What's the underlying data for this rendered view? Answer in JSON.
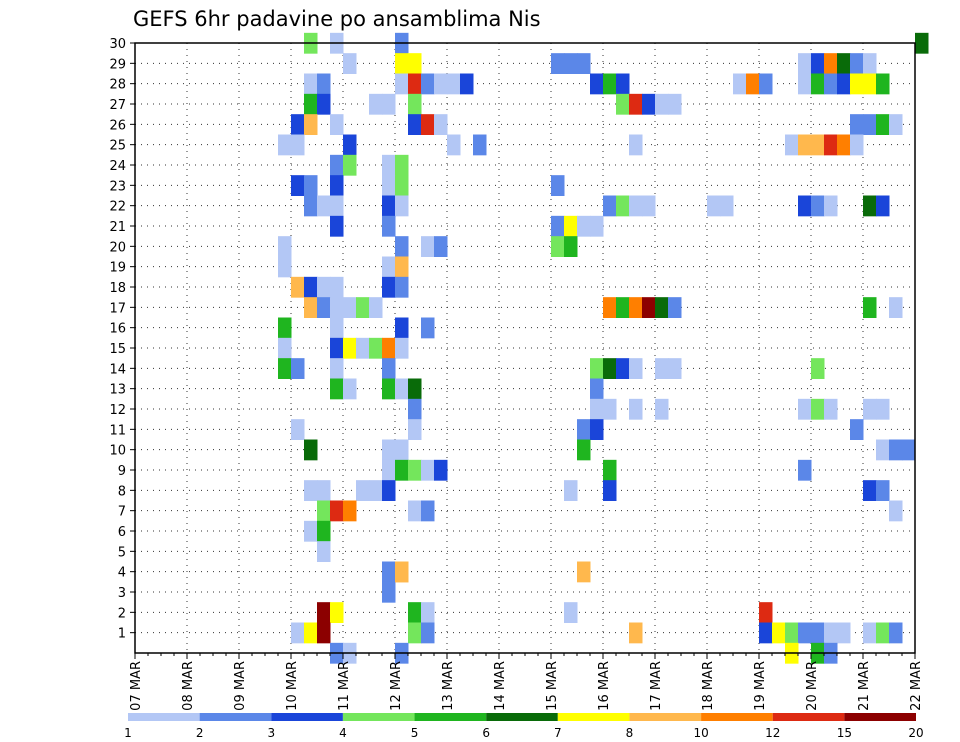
{
  "chart_data": {
    "type": "heatmap",
    "title": "GEFS 6hr padavine po ansamblima Nis",
    "y_ticks": [
      1,
      2,
      3,
      4,
      5,
      6,
      7,
      8,
      9,
      10,
      11,
      12,
      13,
      14,
      15,
      16,
      17,
      18,
      19,
      20,
      21,
      22,
      23,
      24,
      25,
      26,
      27,
      28,
      29,
      30
    ],
    "ylim": [
      0,
      30
    ],
    "x_ticks": [
      {
        "label": "07 MAR",
        "day": 0
      },
      {
        "label": "08 MAR",
        "day": 1
      },
      {
        "label": "09 MAR",
        "day": 2
      },
      {
        "label": "10 MAR",
        "day": 3
      },
      {
        "label": "11 MAR",
        "day": 4
      },
      {
        "label": "12 MAR",
        "day": 5
      },
      {
        "label": "13 MAR",
        "day": 6
      },
      {
        "label": "14 MAR",
        "day": 7
      },
      {
        "label": "15 MAR",
        "day": 8
      },
      {
        "label": "16 MAR",
        "day": 9
      },
      {
        "label": "17 MAR",
        "day": 10
      },
      {
        "label": "18 MAR",
        "day": 11
      },
      {
        "label": "19 MAR",
        "day": 12
      },
      {
        "label": "20 MAR",
        "day": 13
      },
      {
        "label": "21 MAR",
        "day": 14
      },
      {
        "label": "22 MAR",
        "day": 15
      }
    ],
    "grid": true,
    "colorbar": {
      "labels": [
        "1",
        "2",
        "3",
        "4",
        "5",
        "6",
        "7",
        "8",
        "10",
        "12",
        "15",
        "20"
      ],
      "colors": [
        "#b3c7f5",
        "#5b87e8",
        "#1a45d9",
        "#74e65c",
        "#1fb51f",
        "#096b09",
        "#ffff00",
        "#ffb84d",
        "#ff7f00",
        "#dd2a12",
        "#8c0000"
      ]
    },
    "cells": [
      [
        30,
        3.25,
        4
      ],
      [
        30,
        3.75,
        1
      ],
      [
        30,
        5.0,
        2
      ],
      [
        30,
        15.0,
        6
      ],
      [
        29,
        4.0,
        1
      ],
      [
        29,
        5.0,
        7
      ],
      [
        29,
        5.25,
        7
      ],
      [
        29,
        8.0,
        2
      ],
      [
        29,
        8.25,
        2
      ],
      [
        29,
        8.5,
        2
      ],
      [
        29,
        12.75,
        1
      ],
      [
        29,
        13.0,
        3
      ],
      [
        29,
        13.25,
        9
      ],
      [
        29,
        13.5,
        6
      ],
      [
        29,
        13.75,
        2
      ],
      [
        29,
        14.0,
        1
      ],
      [
        28,
        3.25,
        1
      ],
      [
        28,
        3.5,
        2
      ],
      [
        28,
        5.0,
        1
      ],
      [
        28,
        5.25,
        10
      ],
      [
        28,
        5.5,
        2
      ],
      [
        28,
        5.75,
        1
      ],
      [
        28,
        6.0,
        1
      ],
      [
        28,
        6.25,
        3
      ],
      [
        28,
        8.75,
        3
      ],
      [
        28,
        9.0,
        5
      ],
      [
        28,
        9.25,
        3
      ],
      [
        28,
        11.5,
        1
      ],
      [
        28,
        11.75,
        9
      ],
      [
        28,
        12.0,
        2
      ],
      [
        28,
        12.75,
        1
      ],
      [
        28,
        13.0,
        5
      ],
      [
        28,
        13.25,
        2
      ],
      [
        28,
        13.5,
        3
      ],
      [
        28,
        13.75,
        7
      ],
      [
        28,
        14.0,
        7
      ],
      [
        28,
        14.25,
        5
      ],
      [
        27,
        3.25,
        5
      ],
      [
        27,
        3.5,
        3
      ],
      [
        27,
        4.5,
        1
      ],
      [
        27,
        4.75,
        1
      ],
      [
        27,
        5.25,
        4
      ],
      [
        27,
        9.25,
        4
      ],
      [
        27,
        9.5,
        10
      ],
      [
        27,
        9.75,
        3
      ],
      [
        27,
        10.0,
        1
      ],
      [
        27,
        10.25,
        1
      ],
      [
        26,
        3.0,
        3
      ],
      [
        26,
        3.25,
        8
      ],
      [
        26,
        3.75,
        1
      ],
      [
        26,
        5.25,
        3
      ],
      [
        26,
        5.5,
        10
      ],
      [
        26,
        5.75,
        1
      ],
      [
        26,
        13.75,
        2
      ],
      [
        26,
        14.0,
        2
      ],
      [
        26,
        14.25,
        5
      ],
      [
        26,
        14.5,
        1
      ],
      [
        25,
        2.75,
        1
      ],
      [
        25,
        3.0,
        1
      ],
      [
        25,
        4.0,
        3
      ],
      [
        25,
        6.0,
        1
      ],
      [
        25,
        6.5,
        2
      ],
      [
        25,
        9.5,
        1
      ],
      [
        25,
        12.5,
        1
      ],
      [
        25,
        12.75,
        8
      ],
      [
        25,
        13.0,
        8
      ],
      [
        25,
        13.25,
        10
      ],
      [
        25,
        13.5,
        9
      ],
      [
        25,
        13.75,
        1
      ],
      [
        24,
        3.75,
        2
      ],
      [
        24,
        4.0,
        4
      ],
      [
        24,
        4.75,
        1
      ],
      [
        24,
        5.0,
        4
      ],
      [
        23,
        3.0,
        3
      ],
      [
        23,
        3.25,
        2
      ],
      [
        23,
        3.75,
        3
      ],
      [
        23,
        4.75,
        1
      ],
      [
        23,
        5.0,
        4
      ],
      [
        23,
        8.0,
        2
      ],
      [
        22,
        3.25,
        2
      ],
      [
        22,
        3.5,
        1
      ],
      [
        22,
        3.75,
        1
      ],
      [
        22,
        4.75,
        3
      ],
      [
        22,
        5.0,
        1
      ],
      [
        22,
        9.0,
        2
      ],
      [
        22,
        9.25,
        4
      ],
      [
        22,
        9.5,
        1
      ],
      [
        22,
        9.75,
        1
      ],
      [
        22,
        11.0,
        1
      ],
      [
        22,
        11.25,
        1
      ],
      [
        22,
        12.75,
        3
      ],
      [
        22,
        13.0,
        2
      ],
      [
        22,
        13.25,
        1
      ],
      [
        22,
        14.0,
        6
      ],
      [
        22,
        14.25,
        3
      ],
      [
        21,
        3.75,
        3
      ],
      [
        21,
        4.75,
        2
      ],
      [
        21,
        8.0,
        2
      ],
      [
        21,
        8.25,
        7
      ],
      [
        21,
        8.5,
        1
      ],
      [
        21,
        8.75,
        1
      ],
      [
        20,
        2.75,
        1
      ],
      [
        20,
        5.0,
        2
      ],
      [
        20,
        5.5,
        1
      ],
      [
        20,
        5.75,
        2
      ],
      [
        20,
        8.0,
        4
      ],
      [
        20,
        8.25,
        5
      ],
      [
        19,
        2.75,
        1
      ],
      [
        19,
        4.75,
        1
      ],
      [
        19,
        5.0,
        8
      ],
      [
        18,
        3.0,
        8
      ],
      [
        18,
        3.25,
        3
      ],
      [
        18,
        3.5,
        1
      ],
      [
        18,
        3.75,
        1
      ],
      [
        18,
        4.75,
        3
      ],
      [
        18,
        5.0,
        2
      ],
      [
        17,
        3.25,
        8
      ],
      [
        17,
        3.5,
        2
      ],
      [
        17,
        3.75,
        1
      ],
      [
        17,
        4.0,
        1
      ],
      [
        17,
        4.25,
        4
      ],
      [
        17,
        4.5,
        1
      ],
      [
        17,
        9.0,
        9
      ],
      [
        17,
        9.25,
        5
      ],
      [
        17,
        9.5,
        9
      ],
      [
        17,
        9.75,
        11
      ],
      [
        17,
        10.0,
        6
      ],
      [
        17,
        10.25,
        2
      ],
      [
        17,
        14.0,
        5
      ],
      [
        17,
        14.5,
        1
      ],
      [
        16,
        2.75,
        5
      ],
      [
        16,
        3.75,
        1
      ],
      [
        16,
        5.0,
        3
      ],
      [
        16,
        5.5,
        2
      ],
      [
        15,
        2.75,
        1
      ],
      [
        15,
        3.75,
        3
      ],
      [
        15,
        4.0,
        7
      ],
      [
        15,
        4.25,
        1
      ],
      [
        15,
        4.5,
        4
      ],
      [
        15,
        4.75,
        9
      ],
      [
        15,
        5.0,
        1
      ],
      [
        14,
        2.75,
        5
      ],
      [
        14,
        3.0,
        2
      ],
      [
        14,
        3.75,
        1
      ],
      [
        14,
        4.75,
        2
      ],
      [
        14,
        8.75,
        4
      ],
      [
        14,
        9.0,
        6
      ],
      [
        14,
        9.25,
        3
      ],
      [
        14,
        9.5,
        1
      ],
      [
        14,
        10.0,
        1
      ],
      [
        14,
        10.25,
        1
      ],
      [
        14,
        13.0,
        4
      ],
      [
        13,
        3.75,
        5
      ],
      [
        13,
        4.0,
        1
      ],
      [
        13,
        4.75,
        5
      ],
      [
        13,
        5.0,
        1
      ],
      [
        13,
        5.25,
        6
      ],
      [
        13,
        8.75,
        2
      ],
      [
        12,
        5.25,
        2
      ],
      [
        12,
        8.75,
        1
      ],
      [
        12,
        9.0,
        1
      ],
      [
        12,
        9.5,
        1
      ],
      [
        12,
        10.0,
        1
      ],
      [
        12,
        12.75,
        1
      ],
      [
        12,
        13.0,
        4
      ],
      [
        12,
        13.25,
        1
      ],
      [
        12,
        14.0,
        1
      ],
      [
        12,
        14.25,
        1
      ],
      [
        11,
        3.0,
        1
      ],
      [
        11,
        5.25,
        1
      ],
      [
        11,
        8.5,
        2
      ],
      [
        11,
        8.75,
        3
      ],
      [
        11,
        13.75,
        2
      ],
      [
        10,
        3.25,
        6
      ],
      [
        10,
        4.75,
        1
      ],
      [
        10,
        5.0,
        1
      ],
      [
        10,
        8.5,
        5
      ],
      [
        10,
        14.25,
        1
      ],
      [
        10,
        14.5,
        2
      ],
      [
        10,
        14.75,
        2
      ],
      [
        9,
        4.75,
        1
      ],
      [
        9,
        5.0,
        5
      ],
      [
        9,
        5.25,
        4
      ],
      [
        9,
        5.5,
        1
      ],
      [
        9,
        5.75,
        3
      ],
      [
        9,
        9.0,
        5
      ],
      [
        9,
        12.75,
        2
      ],
      [
        8,
        3.25,
        1
      ],
      [
        8,
        3.5,
        1
      ],
      [
        8,
        4.25,
        1
      ],
      [
        8,
        4.5,
        1
      ],
      [
        8,
        4.75,
        3
      ],
      [
        8,
        8.25,
        1
      ],
      [
        8,
        9.0,
        3
      ],
      [
        8,
        14.0,
        3
      ],
      [
        8,
        14.25,
        2
      ],
      [
        7,
        3.5,
        4
      ],
      [
        7,
        3.75,
        10
      ],
      [
        7,
        4.0,
        9
      ],
      [
        7,
        5.25,
        1
      ],
      [
        7,
        5.5,
        2
      ],
      [
        7,
        14.5,
        1
      ],
      [
        6,
        3.25,
        1
      ],
      [
        6,
        3.5,
        5
      ],
      [
        5,
        3.5,
        1
      ],
      [
        4,
        4.75,
        2
      ],
      [
        4,
        5.0,
        8
      ],
      [
        4,
        8.5,
        8
      ],
      [
        3,
        4.75,
        2
      ],
      [
        4,
        5.0,
        8
      ],
      [
        2,
        3.5,
        11
      ],
      [
        2,
        3.75,
        7
      ],
      [
        2,
        5.25,
        5
      ],
      [
        2,
        5.5,
        1
      ],
      [
        2,
        8.25,
        1
      ],
      [
        2,
        12.0,
        10
      ],
      [
        1,
        3.0,
        1
      ],
      [
        1,
        3.25,
        7
      ],
      [
        1,
        3.5,
        11
      ],
      [
        1,
        5.25,
        4
      ],
      [
        1,
        5.5,
        2
      ],
      [
        1,
        9.5,
        8
      ],
      [
        1,
        12.0,
        3
      ],
      [
        1,
        12.25,
        7
      ],
      [
        1,
        12.5,
        4
      ],
      [
        1,
        12.75,
        2
      ],
      [
        1,
        13.0,
        2
      ],
      [
        1,
        13.25,
        1
      ],
      [
        1,
        13.5,
        1
      ],
      [
        1,
        14.0,
        1
      ],
      [
        1,
        14.25,
        4
      ],
      [
        1,
        14.5,
        2
      ],
      [
        0,
        3.75,
        2
      ],
      [
        0,
        4.0,
        1
      ],
      [
        0,
        5.0,
        2
      ],
      [
        0,
        12.5,
        7
      ],
      [
        0,
        13.0,
        5
      ],
      [
        0,
        13.25,
        2
      ]
    ]
  }
}
